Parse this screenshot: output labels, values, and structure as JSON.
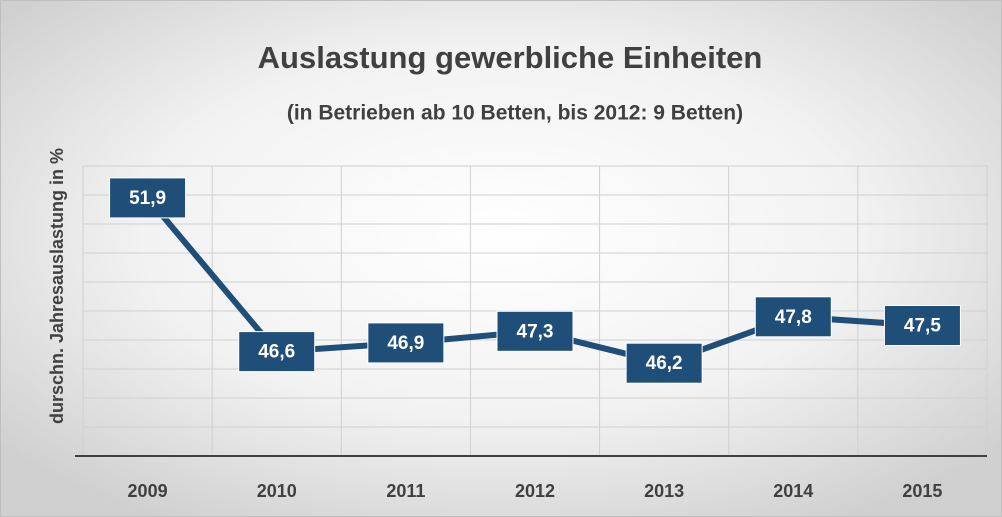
{
  "chart_data": {
    "type": "line",
    "title": "Auslastung gewerbliche Einheiten",
    "subtitle": "(in Betrieben ab 10 Betten, bis 2012: 9 Betten)",
    "y_label": "durschn. Jahresauslastung in %",
    "categories": [
      "2009",
      "2010",
      "2011",
      "2012",
      "2013",
      "2014",
      "2015"
    ],
    "series": [
      {
        "name": "Auslastung",
        "color": "#1f4e79",
        "values": [
          51.9,
          46.6,
          46.9,
          47.3,
          46.2,
          47.8,
          47.5
        ],
        "value_labels": [
          "51,9",
          "46,6",
          "46,9",
          "47,3",
          "46,2",
          "47,8",
          "47,5"
        ]
      }
    ],
    "ylim": [
      43,
      53
    ],
    "yticks": [
      43,
      44,
      45,
      46,
      47,
      48,
      49,
      50,
      51,
      52,
      53
    ],
    "grid": true
  }
}
